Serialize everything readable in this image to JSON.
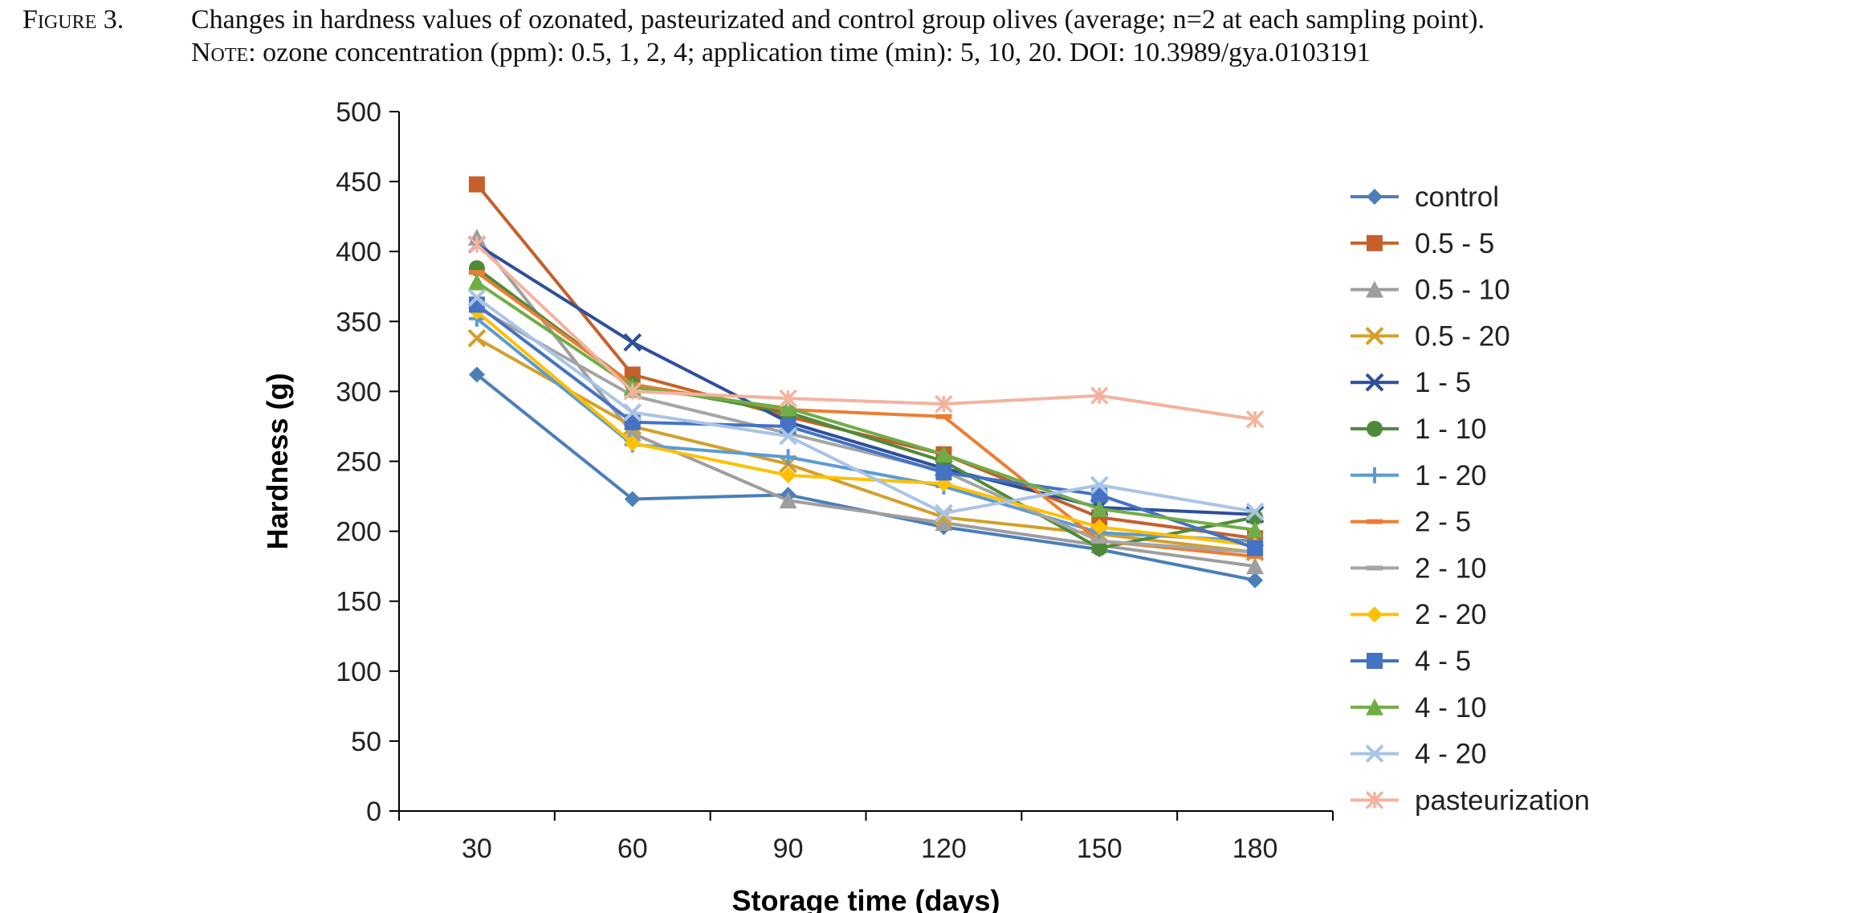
{
  "caption": {
    "label": "Figure 3.",
    "line1": "Changes in hardness values of ozonated, pasteurizated and control group olives (average; n=2 at each sampling point).",
    "note_label": "Note:",
    "line2": "ozone concentration (ppm): 0.5, 1, 2, 4; application time (min): 5, 10, 20. DOI: 10.3989/gya.0103191"
  },
  "chart_data": {
    "type": "line",
    "xlabel": "Storage time (days)",
    "ylabel": "Hardness (g)",
    "ylim": [
      0,
      500
    ],
    "yticks": [
      0,
      50,
      100,
      150,
      200,
      250,
      300,
      350,
      400,
      450,
      500
    ],
    "categories": [
      "30",
      "60",
      "90",
      "120",
      "150",
      "180"
    ],
    "legend_position": "right",
    "grid": false,
    "series": [
      {
        "name": "control",
        "color": "#4a7fb8",
        "marker": "diamond",
        "values": [
          312,
          223,
          226,
          203,
          187,
          165
        ]
      },
      {
        "name": "0.5 - 5",
        "color": "#c5602a",
        "marker": "square",
        "values": [
          448,
          312,
          282,
          255,
          210,
          195
        ]
      },
      {
        "name": "0.5 - 10",
        "color": "#9e9e9e",
        "marker": "triangle",
        "values": [
          410,
          270,
          222,
          206,
          190,
          175
        ]
      },
      {
        "name": "0.5 - 20",
        "color": "#d4a02a",
        "marker": "x",
        "values": [
          338,
          275,
          248,
          210,
          198,
          185
        ]
      },
      {
        "name": "1 - 5",
        "color": "#2e4f9a",
        "marker": "x",
        "values": [
          405,
          335,
          278,
          245,
          217,
          212
        ]
      },
      {
        "name": "1 - 10",
        "color": "#4f8a3a",
        "marker": "circle",
        "values": [
          388,
          305,
          285,
          250,
          188,
          210
        ]
      },
      {
        "name": "1 - 20",
        "color": "#5b9bd5",
        "marker": "plus",
        "values": [
          352,
          262,
          253,
          232,
          199,
          193
        ]
      },
      {
        "name": "2 - 5",
        "color": "#ed7d31",
        "marker": "dash",
        "values": [
          385,
          305,
          287,
          282,
          193,
          182
        ]
      },
      {
        "name": "2 - 10",
        "color": "#a5a5a5",
        "marker": "dash",
        "values": [
          360,
          297,
          270,
          243,
          193,
          185
        ]
      },
      {
        "name": "2 - 20",
        "color": "#ffc000",
        "marker": "diamond",
        "values": [
          357,
          263,
          240,
          234,
          203,
          190
        ]
      },
      {
        "name": "4 - 5",
        "color": "#4472c4",
        "marker": "square",
        "values": [
          362,
          278,
          275,
          242,
          226,
          188
        ]
      },
      {
        "name": "4 - 10",
        "color": "#70ad47",
        "marker": "triangle",
        "values": [
          378,
          303,
          288,
          255,
          216,
          201
        ]
      },
      {
        "name": "4 - 20",
        "color": "#a9c4e6",
        "marker": "x",
        "values": [
          367,
          285,
          268,
          213,
          233,
          214
        ]
      },
      {
        "name": "pasteurization",
        "color": "#f4b29e",
        "marker": "asterisk",
        "values": [
          405,
          300,
          295,
          291,
          297,
          280
        ]
      }
    ]
  }
}
